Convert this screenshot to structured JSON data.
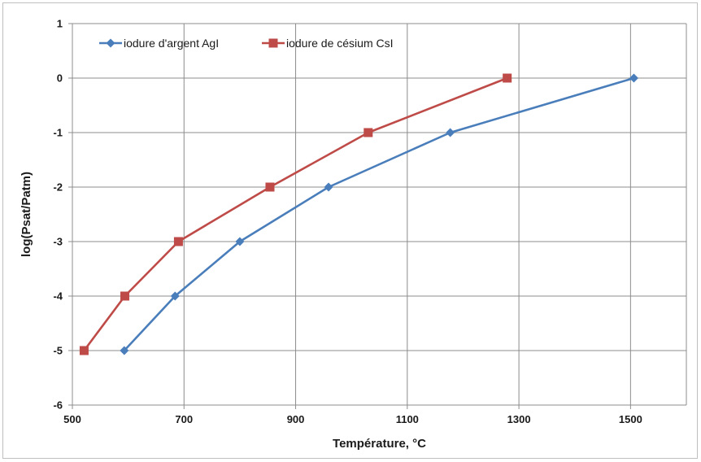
{
  "chart_data": {
    "type": "line",
    "xlabel": "Température, °C",
    "ylabel": "log(Psat/Patm)",
    "xlim": [
      500,
      1600
    ],
    "ylim": [
      -6,
      1
    ],
    "xticks": [
      500,
      700,
      900,
      1100,
      1300,
      1500
    ],
    "yticks": [
      1,
      0,
      -1,
      -2,
      -3,
      -4,
      -5,
      -6
    ],
    "x_tick_labels": [
      "500",
      "700",
      "900",
      "1100",
      "1300",
      "1500"
    ],
    "y_tick_labels": [
      "1",
      "0",
      "-1",
      "-2",
      "-3",
      "-4",
      "-5",
      "-6"
    ],
    "grid": true,
    "legend_position": "top-left",
    "series": [
      {
        "name": "iodure d'argent AgI",
        "color": "#4a7ebb",
        "marker": "diamond",
        "points": [
          [
            593,
            -5
          ],
          [
            684,
            -4
          ],
          [
            800,
            -3
          ],
          [
            959,
            -2
          ],
          [
            1177,
            -1
          ],
          [
            1506,
            0
          ]
        ]
      },
      {
        "name": "iodure de césium CsI",
        "color": "#be4b48",
        "marker": "square",
        "points": [
          [
            521,
            -5
          ],
          [
            594,
            -4
          ],
          [
            690,
            -3
          ],
          [
            854,
            -2
          ],
          [
            1030,
            -1
          ],
          [
            1279,
            0
          ]
        ]
      }
    ]
  }
}
